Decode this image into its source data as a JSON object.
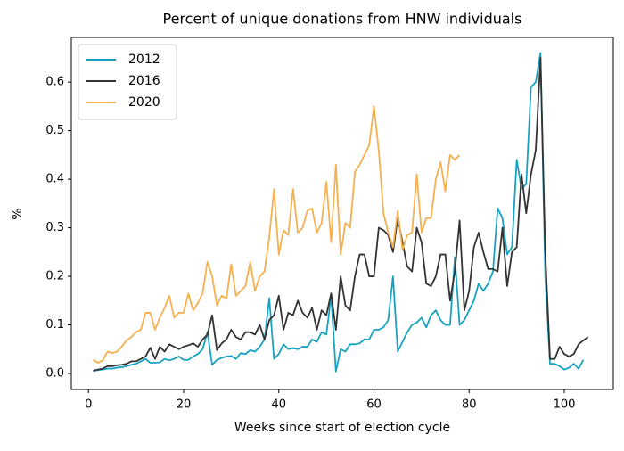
{
  "chart_data": {
    "type": "line",
    "title": "Percent of unique donations from HNW individuals",
    "x_label": "Weeks since start of election cycle",
    "y_label": "%",
    "x": [
      1,
      2,
      3,
      4,
      5,
      6,
      7,
      8,
      9,
      10,
      11,
      12,
      13,
      14,
      15,
      16,
      17,
      18,
      19,
      20,
      21,
      22,
      23,
      24,
      25,
      26,
      27,
      28,
      29,
      30,
      31,
      32,
      33,
      34,
      35,
      36,
      37,
      38,
      39,
      40,
      41,
      42,
      43,
      44,
      45,
      46,
      47,
      48,
      49,
      50,
      51,
      52,
      53,
      54,
      55,
      56,
      57,
      58,
      59,
      60,
      61,
      62,
      63,
      64,
      65,
      66,
      67,
      68,
      69,
      70,
      71,
      72,
      73,
      74,
      75,
      76,
      77,
      78,
      79,
      80,
      81,
      82,
      83,
      84,
      85,
      86,
      87,
      88,
      89,
      90,
      91,
      92,
      93,
      94,
      95,
      96,
      97,
      98,
      99,
      100,
      101,
      102,
      103,
      104,
      105
    ],
    "series": [
      {
        "name": "2012",
        "color": "#17a2c4",
        "values": [
          0.005,
          0.007,
          0.008,
          0.01,
          0.01,
          0.012,
          0.013,
          0.015,
          0.018,
          0.02,
          0.025,
          0.03,
          0.022,
          0.022,
          0.023,
          0.03,
          0.027,
          0.03,
          0.035,
          0.028,
          0.028,
          0.035,
          0.04,
          0.05,
          0.085,
          0.018,
          0.028,
          0.032,
          0.035,
          0.036,
          0.03,
          0.042,
          0.04,
          0.048,
          0.045,
          0.055,
          0.07,
          0.155,
          0.03,
          0.04,
          0.06,
          0.05,
          0.052,
          0.05,
          0.055,
          0.055,
          0.07,
          0.065,
          0.085,
          0.08,
          0.16,
          0.004,
          0.05,
          0.045,
          0.06,
          0.06,
          0.062,
          0.07,
          0.07,
          0.09,
          0.09,
          0.095,
          0.11,
          0.2,
          0.045,
          0.065,
          0.085,
          0.1,
          0.105,
          0.115,
          0.095,
          0.12,
          0.13,
          0.11,
          0.1,
          0.1,
          0.24,
          0.1,
          0.11,
          0.13,
          0.15,
          0.185,
          0.17,
          0.185,
          0.21,
          0.34,
          0.32,
          0.245,
          0.26,
          0.44,
          0.38,
          0.39,
          0.59,
          0.6,
          0.66,
          0.2,
          0.02,
          0.02,
          0.015,
          0.008,
          0.012,
          0.02,
          0.01,
          0.028,
          null
        ]
      },
      {
        "name": "2016",
        "color": "#333333",
        "values": [
          0.006,
          0.008,
          0.01,
          0.015,
          0.015,
          0.017,
          0.018,
          0.02,
          0.025,
          0.025,
          0.03,
          0.035,
          0.053,
          0.03,
          0.055,
          0.045,
          0.06,
          0.055,
          0.05,
          0.055,
          0.058,
          0.062,
          0.055,
          0.07,
          0.08,
          0.12,
          0.048,
          0.062,
          0.07,
          0.09,
          0.075,
          0.07,
          0.085,
          0.085,
          0.08,
          0.1,
          0.07,
          0.11,
          0.12,
          0.16,
          0.09,
          0.125,
          0.12,
          0.15,
          0.125,
          0.115,
          0.135,
          0.09,
          0.13,
          0.12,
          0.165,
          0.09,
          0.2,
          0.14,
          0.13,
          0.2,
          0.245,
          0.245,
          0.2,
          0.2,
          0.3,
          0.295,
          0.285,
          0.25,
          0.32,
          0.27,
          0.22,
          0.21,
          0.3,
          0.27,
          0.185,
          0.18,
          0.2,
          0.245,
          0.245,
          0.15,
          0.21,
          0.315,
          0.13,
          0.17,
          0.26,
          0.29,
          0.25,
          0.215,
          0.215,
          0.21,
          0.3,
          0.18,
          0.25,
          0.26,
          0.41,
          0.33,
          0.41,
          0.46,
          0.65,
          0.25,
          0.03,
          0.03,
          0.055,
          0.04,
          0.035,
          0.04,
          0.06,
          0.068,
          0.075
        ]
      },
      {
        "name": "2020",
        "color": "#f5b04f",
        "values": [
          0.028,
          0.022,
          0.027,
          0.045,
          0.042,
          0.045,
          0.055,
          0.068,
          0.075,
          0.085,
          0.09,
          0.125,
          0.125,
          0.09,
          0.115,
          0.135,
          0.16,
          0.115,
          0.125,
          0.125,
          0.165,
          0.13,
          0.145,
          0.165,
          0.23,
          0.2,
          0.14,
          0.16,
          0.155,
          0.225,
          0.16,
          0.17,
          0.18,
          0.23,
          0.17,
          0.2,
          0.21,
          0.28,
          0.38,
          0.245,
          0.295,
          0.285,
          0.38,
          0.29,
          0.3,
          0.335,
          0.34,
          0.29,
          0.31,
          0.395,
          0.27,
          0.43,
          0.245,
          0.31,
          0.3,
          0.415,
          0.43,
          0.45,
          0.47,
          0.55,
          0.46,
          0.33,
          0.29,
          0.26,
          0.335,
          0.255,
          0.285,
          0.29,
          0.41,
          0.29,
          0.32,
          0.32,
          0.4,
          0.435,
          0.375,
          0.45,
          0.44,
          0.45,
          null,
          null,
          null,
          null,
          null,
          null,
          null,
          null,
          null,
          null,
          null,
          null,
          null,
          null,
          null,
          null,
          null,
          null,
          null,
          null,
          null,
          null,
          null,
          null,
          null,
          null,
          null
        ]
      }
    ],
    "xlim": [
      -3.6,
      110.3
    ],
    "ylim": [
      -0.033,
      0.692
    ],
    "xticks": [
      0,
      20,
      40,
      60,
      80,
      100
    ],
    "yticks": [
      {
        "value": 0,
        "label": "0.0"
      },
      0.1,
      0.2,
      0.3,
      0.4,
      0.5,
      0.6
    ],
    "legend": "upper left"
  }
}
